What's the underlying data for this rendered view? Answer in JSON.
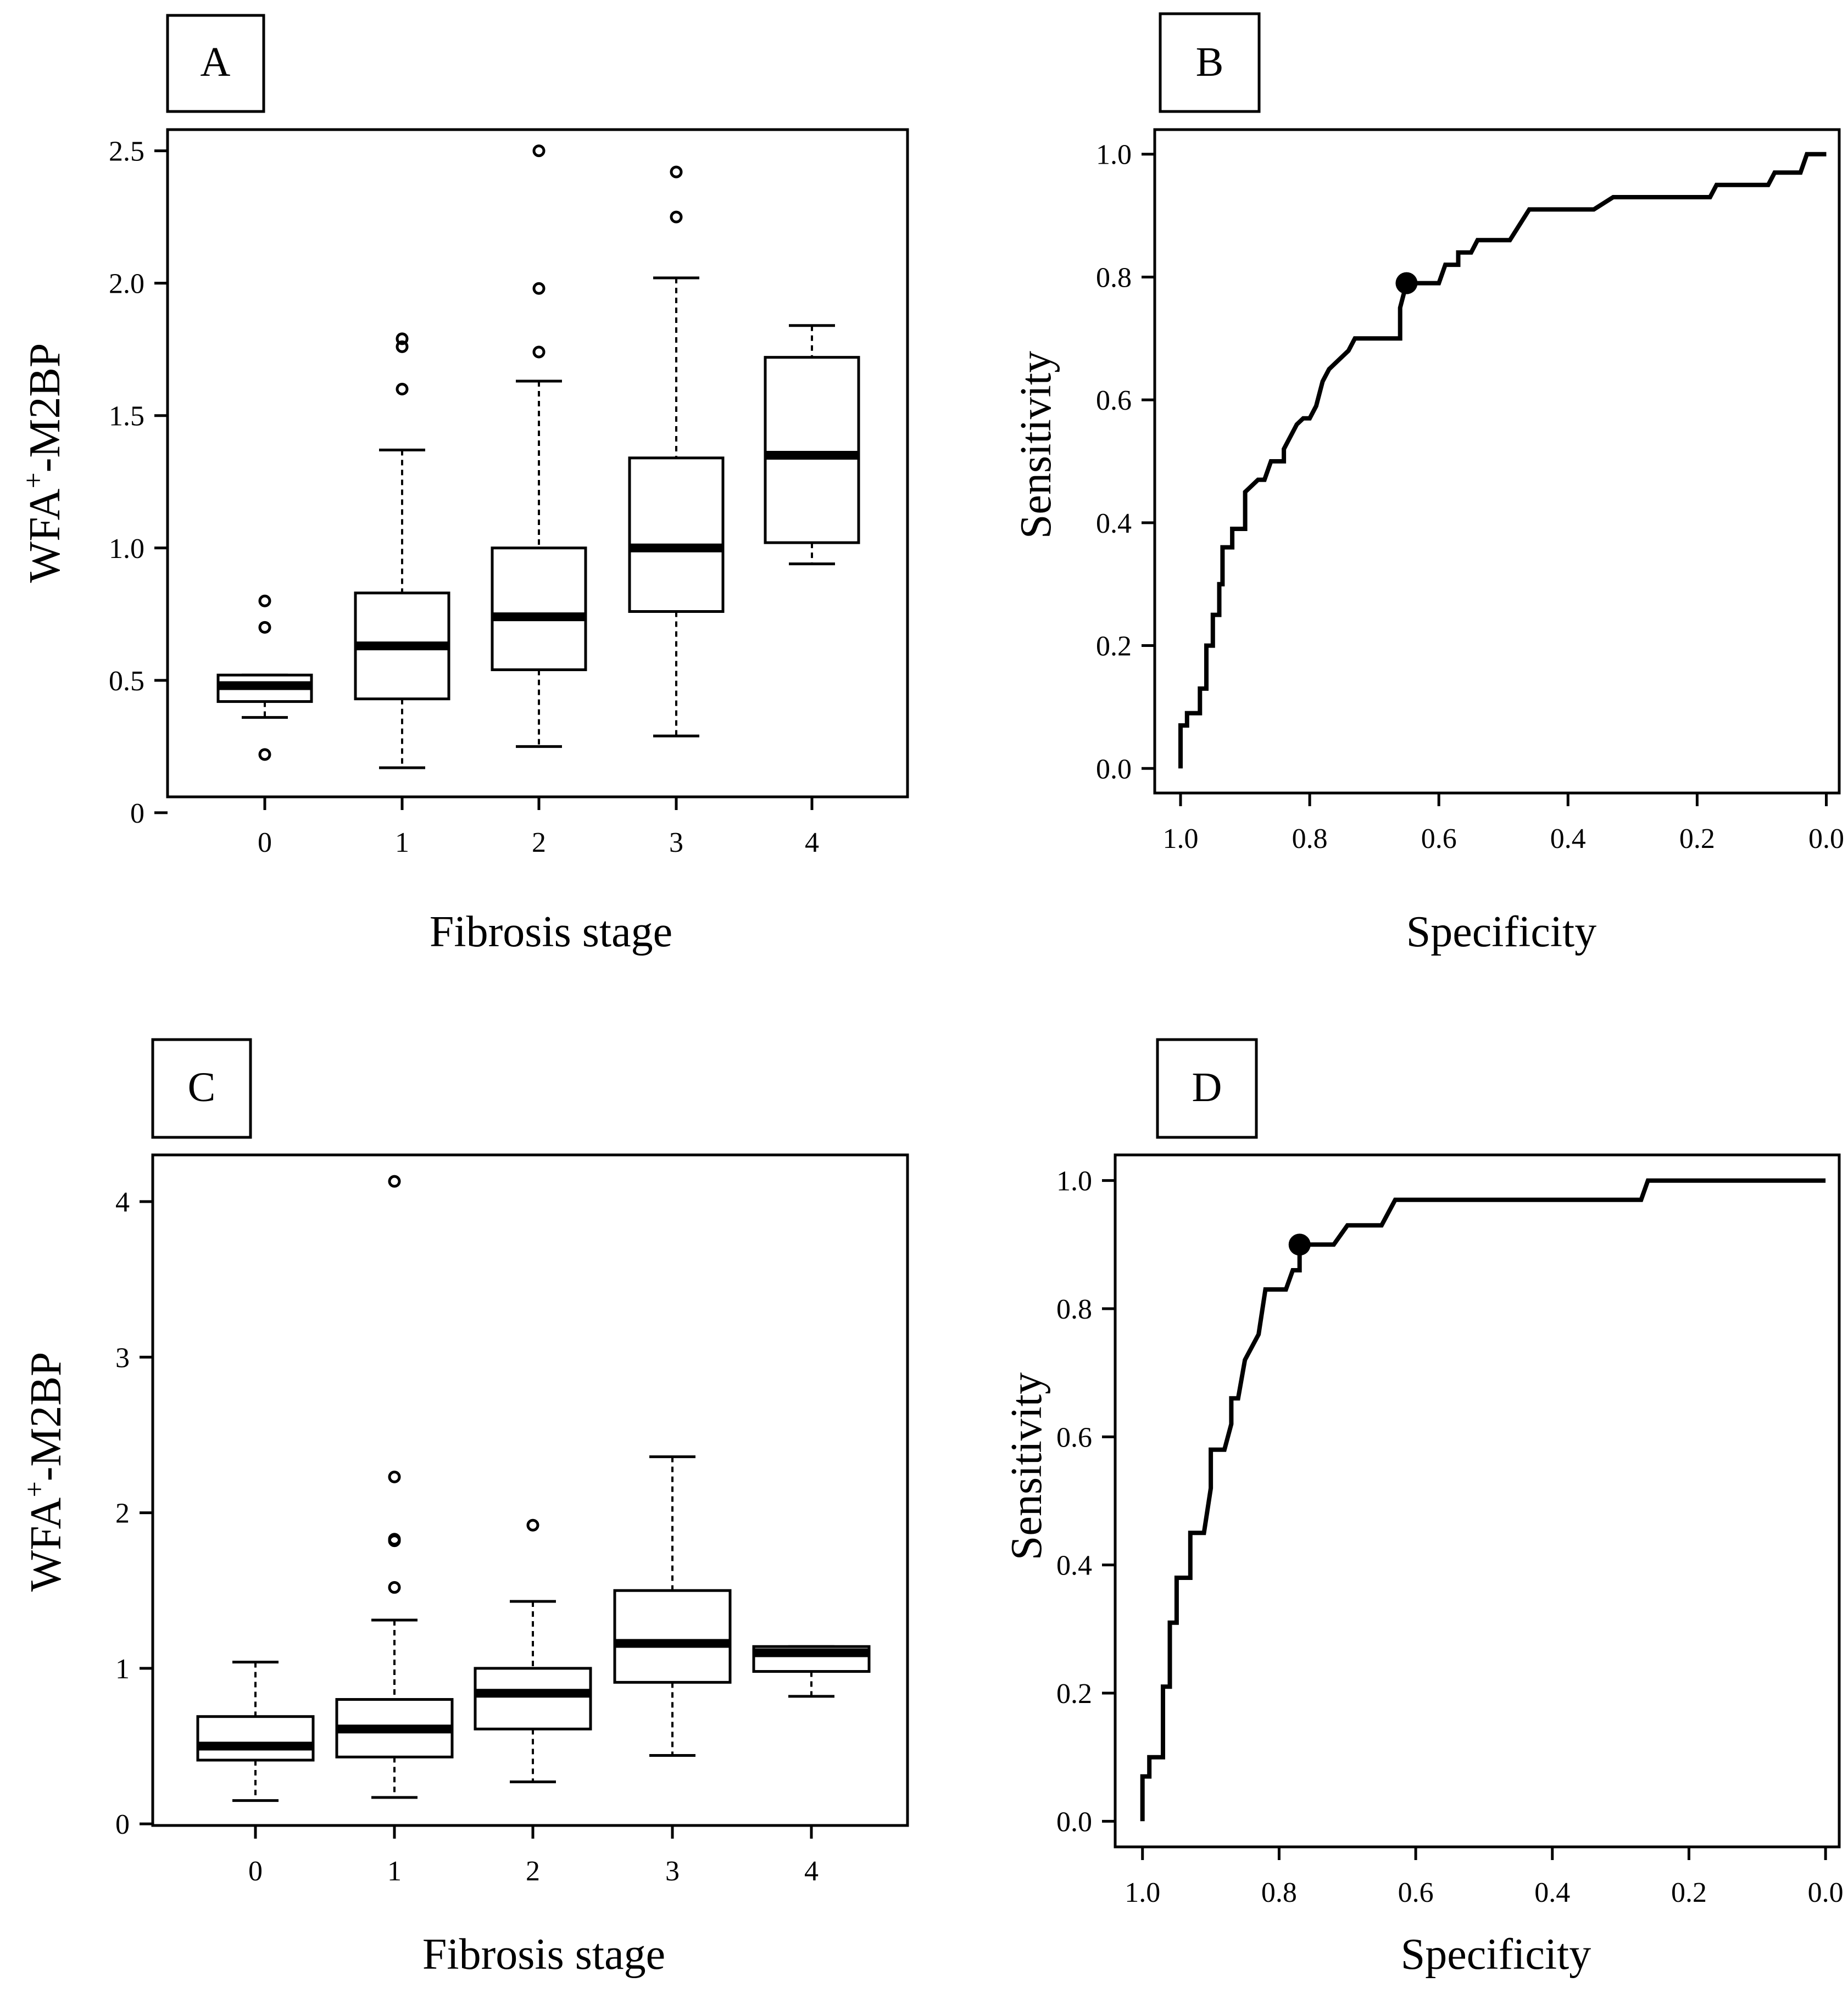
{
  "figure": {
    "panels": [
      "A",
      "B",
      "C",
      "D"
    ]
  },
  "chart_data": [
    {
      "panel": "A",
      "type": "box",
      "xlabel": "Fibrosis stage",
      "ylabel_main": "WFA",
      "ylabel_sup": "+",
      "ylabel_rest": "-M2BP",
      "categories": [
        "0",
        "1",
        "2",
        "3",
        "4"
      ],
      "ylim": [
        0.06,
        2.58
      ],
      "yticks": [
        0,
        0.5,
        1.0,
        1.5,
        2.0,
        2.5
      ],
      "ytick_labels": [
        "0",
        "0.5",
        "1.0",
        "1.5",
        "2.0",
        "2.5"
      ],
      "boxes": [
        {
          "q1": 0.42,
          "median": 0.48,
          "q3": 0.52,
          "wlo": 0.36,
          "whi": 0.52,
          "outliers": [
            0.8,
            0.7,
            0.22
          ]
        },
        {
          "q1": 0.43,
          "median": 0.63,
          "q3": 0.83,
          "wlo": 0.17,
          "whi": 1.37,
          "outliers": [
            1.79,
            1.76,
            1.6
          ]
        },
        {
          "q1": 0.54,
          "median": 0.74,
          "q3": 1.0,
          "wlo": 0.25,
          "whi": 1.63,
          "outliers": [
            2.5,
            1.98,
            1.74
          ]
        },
        {
          "q1": 0.76,
          "median": 1.0,
          "q3": 1.34,
          "wlo": 0.29,
          "whi": 2.02,
          "outliers": [
            2.42,
            2.25
          ]
        },
        {
          "q1": 1.02,
          "median": 1.35,
          "q3": 1.72,
          "wlo": 0.94,
          "whi": 1.84,
          "outliers": []
        }
      ]
    },
    {
      "panel": "B",
      "type": "line",
      "xlabel": "Specificity",
      "ylabel": "Sensitivity",
      "xlim": [
        1.04,
        -0.02
      ],
      "ylim": [
        -0.04,
        1.04
      ],
      "xticks": [
        1.0,
        0.8,
        0.6,
        0.4,
        0.2,
        0.0
      ],
      "xtick_labels": [
        "1.0",
        "0.8",
        "0.6",
        "0.4",
        "0.2",
        "0.0"
      ],
      "yticks": [
        0.0,
        0.2,
        0.4,
        0.6,
        0.8,
        1.0
      ],
      "ytick_labels": [
        "0.0",
        "0.2",
        "0.4",
        "0.6",
        "0.8",
        "1.0"
      ],
      "x": [
        1.0,
        1.0,
        0.99,
        0.99,
        0.97,
        0.97,
        0.96,
        0.96,
        0.95,
        0.95,
        0.94,
        0.94,
        0.935,
        0.935,
        0.92,
        0.92,
        0.9,
        0.9,
        0.88,
        0.87,
        0.86,
        0.84,
        0.84,
        0.82,
        0.81,
        0.8,
        0.79,
        0.78,
        0.77,
        0.76,
        0.74,
        0.73,
        0.71,
        0.68,
        0.66,
        0.66,
        0.65,
        0.6,
        0.59,
        0.57,
        0.57,
        0.55,
        0.54,
        0.49,
        0.46,
        0.36,
        0.33,
        0.18,
        0.17,
        0.09,
        0.08,
        0.04,
        0.03,
        0.0
      ],
      "y": [
        0.0,
        0.07,
        0.07,
        0.09,
        0.09,
        0.13,
        0.13,
        0.2,
        0.2,
        0.25,
        0.25,
        0.3,
        0.3,
        0.36,
        0.36,
        0.39,
        0.39,
        0.45,
        0.47,
        0.47,
        0.5,
        0.5,
        0.52,
        0.56,
        0.57,
        0.57,
        0.59,
        0.63,
        0.65,
        0.66,
        0.68,
        0.7,
        0.7,
        0.7,
        0.7,
        0.75,
        0.79,
        0.79,
        0.82,
        0.82,
        0.84,
        0.84,
        0.86,
        0.86,
        0.91,
        0.91,
        0.93,
        0.93,
        0.95,
        0.95,
        0.97,
        0.97,
        1.0,
        1.0
      ],
      "highlight_point": {
        "x": 0.65,
        "y": 0.79
      }
    },
    {
      "panel": "C",
      "type": "box",
      "xlabel": "Fibrosis stage",
      "ylabel_main": "WFA",
      "ylabel_sup": "+",
      "ylabel_rest": "-M2BP",
      "categories": [
        "0",
        "1",
        "2",
        "3",
        "4"
      ],
      "ylim": [
        -0.01,
        4.3
      ],
      "yticks": [
        0,
        1,
        2,
        3,
        4
      ],
      "ytick_labels": [
        "0",
        "1",
        "2",
        "3",
        "4"
      ],
      "boxes": [
        {
          "q1": 0.41,
          "median": 0.5,
          "q3": 0.69,
          "wlo": 0.15,
          "whi": 1.04,
          "outliers": []
        },
        {
          "q1": 0.43,
          "median": 0.61,
          "q3": 0.8,
          "wlo": 0.17,
          "whi": 1.31,
          "outliers": [
            4.13,
            2.23,
            1.83,
            1.82,
            1.52
          ]
        },
        {
          "q1": 0.61,
          "median": 0.84,
          "q3": 1.0,
          "wlo": 0.27,
          "whi": 1.43,
          "outliers": [
            1.92
          ]
        },
        {
          "q1": 0.91,
          "median": 1.16,
          "q3": 1.5,
          "wlo": 0.44,
          "whi": 2.36,
          "outliers": []
        },
        {
          "q1": 0.98,
          "median": 1.1,
          "q3": 1.14,
          "wlo": 0.82,
          "whi": 1.14,
          "outliers": []
        }
      ]
    },
    {
      "panel": "D",
      "type": "line",
      "xlabel": "Specificity",
      "ylabel": "Sensitivity",
      "xlim": [
        1.04,
        -0.02
      ],
      "ylim": [
        -0.04,
        1.04
      ],
      "xticks": [
        1.0,
        0.8,
        0.6,
        0.4,
        0.2,
        0.0
      ],
      "xtick_labels": [
        "1.0",
        "0.8",
        "0.6",
        "0.4",
        "0.2",
        "0.0"
      ],
      "yticks": [
        0.0,
        0.2,
        0.4,
        0.6,
        0.8,
        1.0
      ],
      "ytick_labels": [
        "0.0",
        "0.2",
        "0.4",
        "0.6",
        "0.8",
        "1.0"
      ],
      "x": [
        1.0,
        1.0,
        0.99,
        0.99,
        0.97,
        0.97,
        0.96,
        0.96,
        0.95,
        0.95,
        0.93,
        0.93,
        0.91,
        0.9,
        0.9,
        0.88,
        0.87,
        0.87,
        0.86,
        0.85,
        0.85,
        0.83,
        0.82,
        0.79,
        0.78,
        0.77,
        0.77,
        0.76,
        0.72,
        0.7,
        0.65,
        0.63,
        0.27,
        0.26,
        0.0
      ],
      "y": [
        0.0,
        0.07,
        0.07,
        0.1,
        0.1,
        0.21,
        0.21,
        0.31,
        0.31,
        0.38,
        0.38,
        0.45,
        0.45,
        0.52,
        0.58,
        0.58,
        0.62,
        0.66,
        0.66,
        0.72,
        0.72,
        0.76,
        0.83,
        0.83,
        0.86,
        0.86,
        0.9,
        0.9,
        0.9,
        0.93,
        0.93,
        0.97,
        0.97,
        1.0,
        1.0
      ],
      "highlight_point": {
        "x": 0.77,
        "y": 0.9
      }
    }
  ]
}
